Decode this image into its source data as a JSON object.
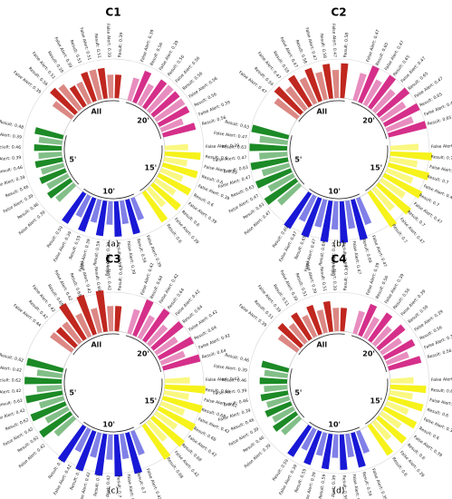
{
  "figure": {
    "colors": {
      "All": "#c0271f",
      "20'": "#d52f8a",
      "15'": "#f6f21a",
      "10'": "#1818d6",
      "5'": "#1c8a26"
    }
  },
  "chart_data": [
    {
      "type": "radial-bar",
      "title": "C1",
      "caption": "(a)",
      "groups": [
        {
          "name": "All",
          "labels": [
            "False Alert: 0.39",
            "Result: 0.56",
            "False Alert: 0.51",
            "Result: 0.39",
            "False Alert: 0.39",
            "Result: 0.51",
            "False Alert: 0.51",
            "Result: 0.51",
            "False Alert: 0.39",
            "Result: 0.39"
          ],
          "values": [
            0.39,
            0.56,
            0.51,
            0.39,
            0.39,
            0.51,
            0.51,
            0.51,
            0.39,
            0.39
          ]
        },
        {
          "name": "20'",
          "labels": [
            "False Alert: 0.39",
            "Result: 0.56",
            "False Alert: 0.39",
            "Result: 0.56",
            "False Alert: 0.56",
            "Result: 0.56",
            "False Alert: 0.56",
            "Result: 0.56",
            "False Alert: 0.39",
            "Result: 0.56"
          ],
          "values": [
            0.39,
            0.56,
            0.39,
            0.56,
            0.56,
            0.56,
            0.56,
            0.56,
            0.39,
            0.56
          ]
        },
        {
          "name": "15'",
          "labels": [
            "False Alert: 0.39",
            "Result: 0.6",
            "False Alert: 0.39",
            "Result: 0.6",
            "False Alert: 0.39",
            "Result: 0.6",
            "False Alert: 0.39",
            "Result: 0.6",
            "False Alert: 0.39",
            "Result: 0.6"
          ],
          "values": [
            0.39,
            0.6,
            0.39,
            0.6,
            0.39,
            0.6,
            0.39,
            0.6,
            0.39,
            0.6
          ]
        },
        {
          "name": "10'",
          "labels": [
            "False Alert: 0.39",
            "Result: 0.59",
            "False Alert: 0.39",
            "Result: 0.59",
            "False Alert: 0.39",
            "Result: 0.59",
            "False Alert: 0.39",
            "Result: 0.59",
            "False Alert: 0.39",
            "Result: 0.59"
          ],
          "values": [
            0.39,
            0.59,
            0.39,
            0.59,
            0.39,
            0.59,
            0.39,
            0.59,
            0.39,
            0.59
          ]
        },
        {
          "name": "5'",
          "labels": [
            "False Alert: 0.39",
            "Result: 0.46",
            "False Alert: 0.39",
            "Result: 0.46",
            "False Alert: 0.39",
            "Result: 0.46",
            "False Alert: 0.39",
            "Result: 0.46",
            "False Alert: 0.39",
            "Result: 0.48"
          ],
          "values": [
            0.39,
            0.46,
            0.39,
            0.46,
            0.39,
            0.46,
            0.39,
            0.46,
            0.39,
            0.48
          ]
        }
      ]
    },
    {
      "type": "radial-bar",
      "title": "C2",
      "caption": "(b)",
      "groups": [
        {
          "name": "All",
          "labels": [
            "False Alert: 0.47",
            "Result: 0.59",
            "False Alert: 0.47",
            "Result: 0.59",
            "False Alert: 0.47",
            "Result: 0.58",
            "False Alert: 0.47",
            "Result: 0.58",
            "False Alert: 0.47",
            "Result: 0.58"
          ],
          "values": [
            0.47,
            0.59,
            0.47,
            0.59,
            0.47,
            0.58,
            0.47,
            0.58,
            0.47,
            0.58
          ]
        },
        {
          "name": "20'",
          "labels": [
            "False Alert: 0.47",
            "Result: 0.65",
            "False Alert: 0.47",
            "Result: 0.65",
            "False Alert: 0.47",
            "Result: 0.65",
            "False Alert: 0.47",
            "Result: 0.65",
            "False Alert: 0.47",
            "Result: 0.65"
          ],
          "values": [
            0.47,
            0.65,
            0.47,
            0.65,
            0.47,
            0.65,
            0.47,
            0.65,
            0.47,
            0.65
          ]
        },
        {
          "name": "15'",
          "labels": [
            "False Alert: 0.47",
            "Result: 0.7",
            "False Alert: 0.47",
            "Result: 0.7",
            "False Alert: 0.47",
            "Result: 0.7",
            "False Alert: 0.47",
            "Result: 0.7",
            "False Alert: 0.47",
            "Result: 0.7"
          ],
          "values": [
            0.47,
            0.7,
            0.47,
            0.7,
            0.47,
            0.7,
            0.47,
            0.7,
            0.47,
            0.7
          ]
        },
        {
          "name": "10'",
          "labels": [
            "False Alert: 0.47",
            "Result: 0.69",
            "False Alert: 0.47",
            "Result: 0.69",
            "False Alert: 0.47",
            "Result: 0.69",
            "False Alert: 0.47",
            "Result: 0.69",
            "False Alert: 0.47",
            "Result: 0.69"
          ],
          "values": [
            0.47,
            0.69,
            0.47,
            0.69,
            0.47,
            0.69,
            0.47,
            0.69,
            0.47,
            0.69
          ]
        },
        {
          "name": "5'",
          "labels": [
            "False Alert: 0.47",
            "Result: 0.63",
            "False Alert: 0.47",
            "Result: 0.63",
            "False Alert: 0.47",
            "Result: 0.63",
            "False Alert: 0.47",
            "Result: 0.63",
            "False Alert: 0.47",
            "Result: 0.63"
          ],
          "values": [
            0.47,
            0.63,
            0.47,
            0.63,
            0.47,
            0.63,
            0.47,
            0.63,
            0.47,
            0.63
          ]
        }
      ]
    },
    {
      "type": "radial-bar",
      "title": "C3",
      "caption": "(c)",
      "groups": [
        {
          "name": "All",
          "labels": [
            "False Alert: 0.44",
            "Result: 0.42",
            "False Alert: 0.42",
            "Result: 0.69",
            "False Alert: 0.42",
            "Result: 0.69",
            "False Alert: 0.42",
            "Result: 0.69",
            "False Alert: 0.42",
            "Result: 0.42"
          ],
          "values": [
            0.44,
            0.42,
            0.42,
            0.69,
            0.42,
            0.69,
            0.42,
            0.69,
            0.42,
            0.42
          ]
        },
        {
          "name": "20'",
          "labels": [
            "False Alert: 0.42",
            "Result: 0.64",
            "False Alert: 0.42",
            "Result: 0.64",
            "False Alert: 0.42",
            "Result: 0.64",
            "False Alert: 0.42",
            "Result: 0.64",
            "False Alert: 0.42",
            "Result: 0.64"
          ],
          "values": [
            0.42,
            0.64,
            0.42,
            0.64,
            0.42,
            0.64,
            0.42,
            0.64,
            0.42,
            0.64
          ]
        },
        {
          "name": "15'",
          "labels": [
            "False Alert: 0.42",
            "Result: 0.68",
            "False Alert: 0.42",
            "Result: 0.68",
            "False Alert: 0.42",
            "Result: 0.68",
            "False Alert: 0.42",
            "Result: 0.68",
            "False Alert: 0.42",
            "Result: 0.68"
          ],
          "values": [
            0.42,
            0.68,
            0.42,
            0.68,
            0.42,
            0.68,
            0.42,
            0.68,
            0.42,
            0.68
          ]
        },
        {
          "name": "10'",
          "labels": [
            "False Alert: 0.42",
            "Result: 0.7",
            "False Alert: 0.42",
            "Result: 0.7",
            "False Alert: 0.42",
            "Result: 0.7",
            "False Alert: 0.42",
            "Result: 0.7",
            "False Alert: 0.42",
            "Result: 0.7"
          ],
          "values": [
            0.42,
            0.7,
            0.42,
            0.7,
            0.42,
            0.7,
            0.42,
            0.7,
            0.42,
            0.7
          ]
        },
        {
          "name": "5'",
          "labels": [
            "False Alert: 0.42",
            "Result: 0.62",
            "False Alert: 0.42",
            "Result: 0.62",
            "False Alert: 0.42",
            "Result: 0.62",
            "False Alert: 0.42",
            "Result: 0.62",
            "False Alert: 0.42",
            "Result: 0.62"
          ],
          "values": [
            0.42,
            0.62,
            0.42,
            0.62,
            0.42,
            0.62,
            0.42,
            0.62,
            0.42,
            0.62
          ]
        }
      ]
    },
    {
      "type": "radial-bar",
      "title": "C4",
      "caption": "(d)",
      "groups": [
        {
          "name": "All",
          "labels": [
            "False Alert: 0.39",
            "Result: 0.51",
            "False Alert: 0.39",
            "Result: 0.51",
            "False Alert: 0.39",
            "Result: 0.51",
            "False Alert: 0.39",
            "Result: 0.51",
            "False Alert: 0.39",
            "Result: 0.39"
          ],
          "values": [
            0.39,
            0.51,
            0.39,
            0.51,
            0.39,
            0.51,
            0.39,
            0.51,
            0.39,
            0.39
          ]
        },
        {
          "name": "20'",
          "labels": [
            "False Alert: 0.39",
            "Result: 0.56",
            "False Alert: 0.39",
            "Result: 0.56",
            "False Alert: 0.39",
            "Result: 0.56",
            "False Alert: 0.39",
            "Result: 0.56",
            "False Alert: 0.39",
            "Result: 0.56"
          ],
          "values": [
            0.39,
            0.56,
            0.39,
            0.56,
            0.39,
            0.56,
            0.39,
            0.56,
            0.39,
            0.56
          ]
        },
        {
          "name": "15'",
          "labels": [
            "False Alert: 0.39",
            "Result: 0.6",
            "False Alert: 0.39",
            "Result: 0.6",
            "False Alert: 0.39",
            "Result: 0.6",
            "False Alert: 0.39",
            "Result: 0.6",
            "False Alert: 0.39",
            "Result: 0.6"
          ],
          "values": [
            0.39,
            0.6,
            0.39,
            0.6,
            0.39,
            0.6,
            0.39,
            0.6,
            0.39,
            0.6
          ]
        },
        {
          "name": "10'",
          "labels": [
            "False Alert: 0.39",
            "Result: 0.59",
            "False Alert: 0.39",
            "Result: 0.59",
            "False Alert: 0.39",
            "Result: 0.59",
            "False Alert: 0.39",
            "Result: 0.59",
            "False Alert: 0.39",
            "Result: 0.59"
          ],
          "values": [
            0.39,
            0.59,
            0.39,
            0.59,
            0.39,
            0.59,
            0.39,
            0.59,
            0.39,
            0.59
          ]
        },
        {
          "name": "5'",
          "labels": [
            "False Alert: 0.39",
            "Result: 0.46",
            "False Alert: 0.39",
            "Result: 0.46",
            "False Alert: 0.39",
            "Result: 0.46",
            "False Alert: 0.39",
            "Result: 0.46",
            "False Alert: 0.39",
            "Result: 0.46"
          ],
          "values": [
            0.39,
            0.46,
            0.39,
            0.46,
            0.39,
            0.46,
            0.39,
            0.46,
            0.39,
            0.46
          ]
        }
      ]
    }
  ]
}
